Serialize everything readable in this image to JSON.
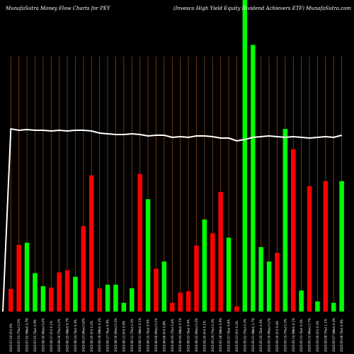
{
  "header": {
    "left_title": "MunafaSutra  Money Flow  Charts for PEY",
    "right_title": "(Invesco  High Yield Equity Dividend Achievers ETF) MunafaSutra.com"
  },
  "colors": {
    "background": "#000000",
    "up": "#00ff00",
    "down": "#ff0000",
    "grid": "#8b4513",
    "line": "#ffffff"
  },
  "chart_data": {
    "type": "bar",
    "title": "MunafaSutra  Money Flow  Charts for PEY",
    "subtitle": "(Invesco  High Yield Equity Dividend Achievers ETF) MunafaSutra.com",
    "categories": [
      "2025-07-04 (Fri) 0%",
      "2025-07-03 (Thu) 0.5%",
      "2025-07-02 (Wed) 0.3%",
      "2025-07-01 (Tue) 0.9%",
      "2025-06-30 (Mon) 0.4%",
      "2025-06-27 (Fri) 0.1%",
      "2025-06-26 (Thu) 0.2%",
      "2025-06-25 (Wed) 0.7%",
      "2025-06-24 (Tue) 0.4%",
      "2025-06-23 (Mon) 0.8%",
      "2025-06-20 (Fri) 0.2%",
      "2025-06-18 (Wed) 0.2%",
      "2025-06-17 (Tue) 0.9%",
      "2025-06-16 (Mon) 0.3%",
      "2025-06-13 (Fri) 0.9%",
      "2025-06-12 (Thu) 0.3%",
      "2025-06-11 (Wed) 0.1%",
      "2025-06-10 (Tue) 0.5%",
      "2025-06-09 (Mon) 0.1%",
      "2025-06-06 (Fri) 0.8%",
      "2025-06-05 (Thu) 0.4%",
      "2025-06-04 (Wed) 0.1%",
      "2025-06-03 (Tue) 0.4%",
      "2025-06-02 (Mon) 0.3%",
      "2025-05-30 (Fri) 0.1%",
      "2025-05-29 (Thu) 0.3%",
      "2025-05-28 (Wed) 0.9%",
      "2025-05-27 (Tue) 0.6%",
      "2025-05-23 (Fri) 0.2%",
      "2025-05-22 (Thu) 0.3%",
      "2025-05-21 (Wed) 1.7%",
      "2025-05-20 (Tue) 0.4%",
      "2025-05-19 (Mon) 0.2%",
      "2025-05-16 (Fri) 0.4%",
      "2025-05-15 (Thu) 0.3%",
      "2025-05-14 (Wed) 0.1%",
      "2025-05-13 (Tue) 0.4%",
      "2025-05-12 (Mon) 2.7%",
      "2025-05-09 (Fri) 0.3%",
      "2025-05-08 (Thu) 1.1%",
      "2025-05-07 (Wed) 0.4%",
      "2025-05-06 (Tue) 0.9%"
    ],
    "series": [
      {
        "values": [
          31,
          92,
          95,
          53,
          35,
          33,
          54,
          57,
          48,
          118,
          188,
          32,
          37,
          37,
          12,
          32,
          190,
          155,
          59,
          69,
          12,
          26,
          28,
          91,
          127,
          108,
          165,
          102,
          7,
          430,
          368,
          89,
          69,
          81,
          252,
          224,
          29,
          173,
          14,
          180,
          12,
          180
        ],
        "colors": [
          "down",
          "down",
          "up",
          "up",
          "up",
          "down",
          "down",
          "down",
          "up",
          "down",
          "down",
          "down",
          "up",
          "up",
          "up",
          "up",
          "down",
          "up",
          "down",
          "up",
          "down",
          "down",
          "down",
          "down",
          "up",
          "down",
          "down",
          "up",
          "down",
          "up",
          "up",
          "up",
          "up",
          "down",
          "up",
          "down",
          "up",
          "down",
          "up",
          "down",
          "up",
          "up"
        ]
      }
    ],
    "price_line": [
      258,
      256,
      257,
      256,
      256,
      255,
      256,
      255,
      256,
      256,
      255,
      252,
      251,
      250,
      250,
      251,
      250,
      248,
      249,
      249,
      246,
      247,
      246,
      248,
      248,
      247,
      245,
      245,
      241,
      243,
      246,
      247,
      248,
      247,
      246,
      247,
      246,
      245,
      246,
      247,
      246,
      249
    ],
    "ylim": [
      0,
      430
    ],
    "grid": true
  }
}
